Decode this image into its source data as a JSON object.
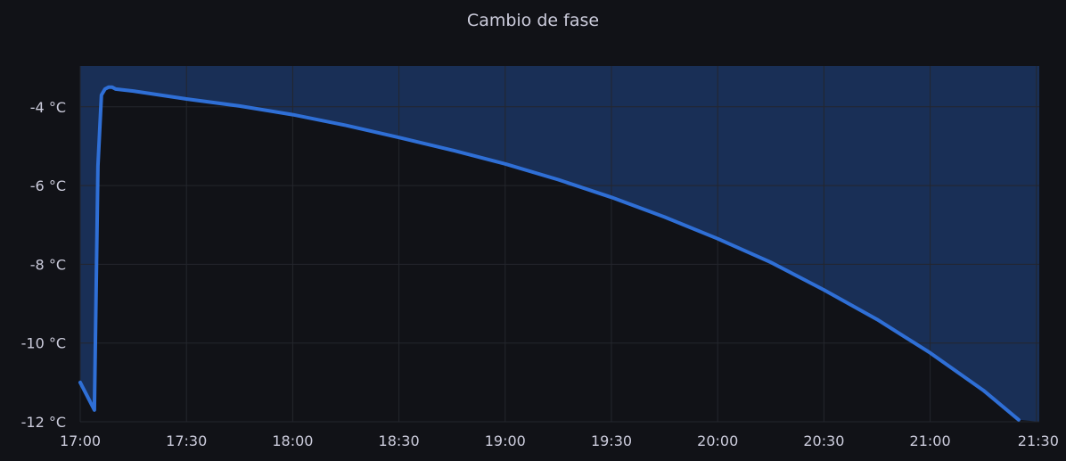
{
  "panel": {
    "title": "Cambio de fase"
  },
  "colors": {
    "background": "#111217",
    "grid": "#24262d",
    "series": "#2f6fd6",
    "fill": "#1b3561",
    "text": "#ccccdc"
  },
  "chart_data": {
    "type": "line",
    "title": "Cambio de fase",
    "xlabel": "",
    "ylabel": "",
    "x_unit": "time (HH:MM)",
    "y_unit": "°C",
    "xlim": [
      "17:00",
      "21:30"
    ],
    "ylim": [
      -12,
      -3.1
    ],
    "fill": "above-line",
    "grid": true,
    "x_ticks": [
      "17:00",
      "17:30",
      "18:00",
      "18:30",
      "19:00",
      "19:30",
      "20:00",
      "20:30",
      "21:00",
      "21:30"
    ],
    "y_ticks": [
      "-4 °C",
      "-6 °C",
      "-8 °C",
      "-10 °C",
      "-12 °C"
    ],
    "series": [
      {
        "x": [
          "17:00",
          "17:04",
          "17:05",
          "17:06",
          "17:07",
          "17:08",
          "17:09",
          "17:10",
          "17:15",
          "17:30",
          "17:45",
          "18:00",
          "18:15",
          "18:30",
          "18:45",
          "19:00",
          "19:15",
          "19:30",
          "19:45",
          "20:00",
          "20:15",
          "20:30",
          "20:45",
          "21:00",
          "21:15",
          "21:25"
        ],
        "y": [
          -11.0,
          -11.7,
          -5.5,
          -3.7,
          -3.55,
          -3.5,
          -3.5,
          -3.55,
          -3.6,
          -3.8,
          -3.98,
          -4.2,
          -4.47,
          -4.78,
          -5.1,
          -5.45,
          -5.85,
          -6.3,
          -6.8,
          -7.35,
          -7.95,
          -8.65,
          -9.4,
          -10.25,
          -11.2,
          -11.95
        ]
      }
    ]
  }
}
